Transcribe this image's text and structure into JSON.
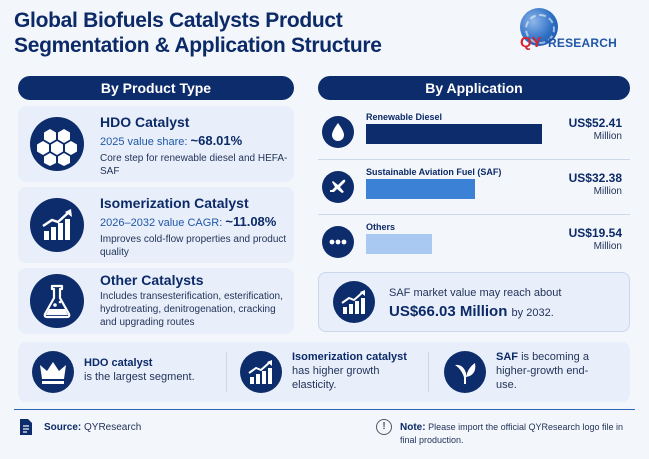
{
  "title": {
    "line1": "Global Biofuels Catalysts Product",
    "line2": "Segmentation & Application Structure"
  },
  "logo": {
    "q": "QY",
    "research": "RESEARCH"
  },
  "sections": {
    "product_type": "By Product Type",
    "application": "By Application"
  },
  "products": [
    {
      "name": "HDO Catalyst",
      "metric_label": "2025 value share:",
      "metric_value": "~68.01%",
      "desc": "Core step for renewable diesel and HEFA-SAF",
      "icon": "hexagon-cluster-icon"
    },
    {
      "name": "Isomerization Catalyst",
      "metric_label": "2026–2032 value CAGR:",
      "metric_value": "~11.08%",
      "desc": "Improves cold-flow properties and product quality",
      "icon": "growth-chart-icon"
    },
    {
      "name": "Other Catalysts",
      "desc": "Includes transesterification, esterification, hydrotreating, denitrogenation, cracking and upgrading routes",
      "icon": "flask-icon"
    }
  ],
  "applications": [
    {
      "label": "Renewable Diesel",
      "value": "US$52.41",
      "unit": "Million",
      "amount": 52.41,
      "color": "#0d2c6b",
      "icon": "droplet-icon"
    },
    {
      "label": "Sustainable Aviation Fuel (SAF)",
      "value": "US$32.38",
      "unit": "Million",
      "amount": 32.38,
      "color": "#3b82d6",
      "icon": "airplane-icon"
    },
    {
      "label": "Others",
      "value": "US$19.54",
      "unit": "Million",
      "amount": 19.54,
      "color": "#a9c9f2",
      "icon": "more-dots-icon"
    }
  ],
  "saf_forecast": {
    "line1": "SAF market value may reach about",
    "value": "US$66.03 Million",
    "suffix": "by 2032."
  },
  "highlights": [
    {
      "bold": "HDO catalyst",
      "rest": "is the largest segment.",
      "icon": "crown-icon"
    },
    {
      "bold": "Isomerization catalyst",
      "rest": "has higher growth elasticity.",
      "icon": "growth-chart-icon"
    },
    {
      "bold": "SAF",
      "rest": "is becoming a higher-growth end-use.",
      "icon": "leaf-icon"
    }
  ],
  "footer": {
    "source_label": "Source:",
    "source_value": "QYResearch",
    "note_label": "Note:",
    "note_text": "Please import the official QYResearch logo file in final production."
  }
}
